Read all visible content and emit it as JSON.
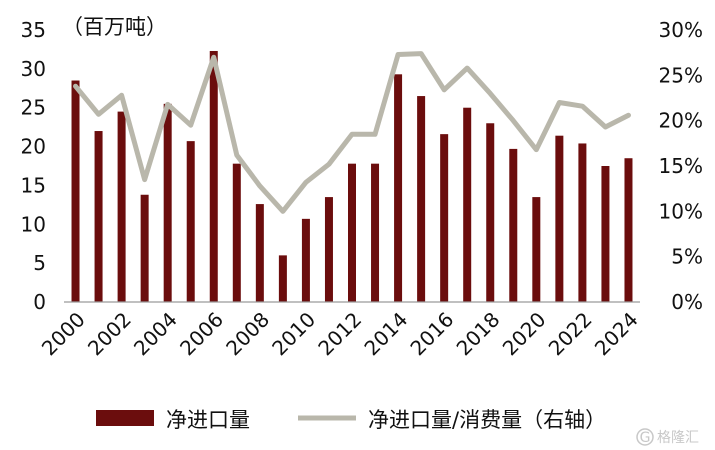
{
  "chart_data": {
    "type": "bar+line",
    "unit_label": "（百万吨）",
    "x": [
      "2000",
      "2001",
      "2002",
      "2003",
      "2004",
      "2005",
      "2006",
      "2007",
      "2008",
      "2009",
      "2010",
      "2011",
      "2012",
      "2013",
      "2014",
      "2015",
      "2016",
      "2017",
      "2018",
      "2019",
      "2020",
      "2021",
      "2022",
      "2023",
      "2024"
    ],
    "x_tick_labels": [
      "2000",
      "2002",
      "2004",
      "2006",
      "2008",
      "2010",
      "2012",
      "2014",
      "2016",
      "2018",
      "2020",
      "2022",
      "2024"
    ],
    "y_left": {
      "min": 0,
      "max": 35,
      "ticks": [
        "0",
        "5",
        "10",
        "15",
        "20",
        "25",
        "30",
        "35"
      ]
    },
    "y_right": {
      "min": 0,
      "max": 30,
      "ticks": [
        "0%",
        "5%",
        "10%",
        "15%",
        "20%",
        "25%",
        "30%"
      ]
    },
    "series": [
      {
        "name": "净进口量",
        "axis": "left",
        "type": "bar",
        "color": "#6b0d0d",
        "values": [
          28.5,
          22.0,
          24.5,
          13.8,
          25.5,
          20.7,
          32.3,
          17.8,
          12.6,
          6.0,
          10.7,
          13.5,
          17.8,
          17.8,
          29.3,
          26.5,
          21.6,
          25.0,
          23.0,
          19.7,
          13.5,
          21.4,
          20.4,
          17.5,
          18.5
        ]
      },
      {
        "name": "净进口量/消费量（右轴）",
        "axis": "right",
        "type": "line",
        "color": "#b9b7ab",
        "values": [
          23.8,
          20.7,
          22.8,
          13.5,
          21.8,
          19.5,
          27.0,
          16.2,
          12.8,
          10.0,
          13.2,
          15.2,
          18.5,
          18.5,
          27.3,
          27.4,
          23.4,
          25.8,
          23.0,
          20.0,
          16.8,
          22.0,
          21.6,
          19.3,
          20.6
        ]
      }
    ],
    "grid": false,
    "legend_position": "bottom"
  },
  "watermark": {
    "icon": "G",
    "text": "格隆汇"
  }
}
